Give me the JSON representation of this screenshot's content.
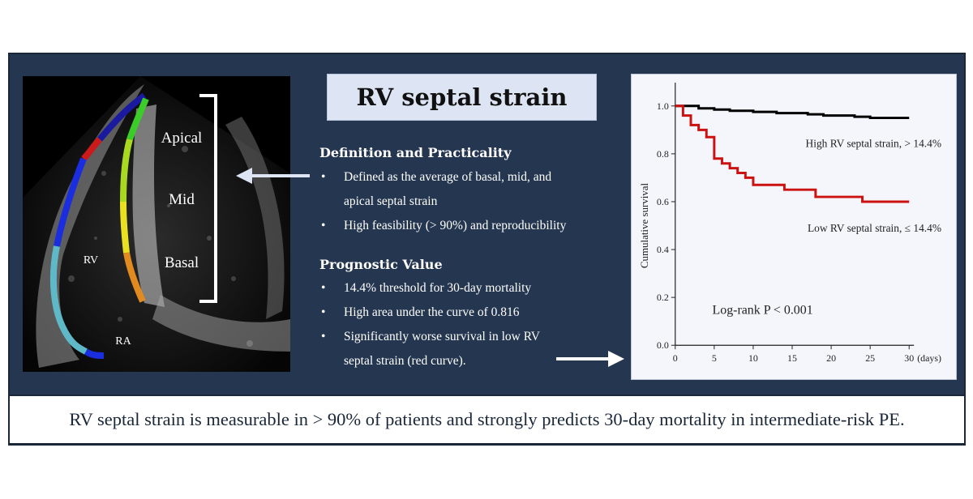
{
  "title": "RV septal strain",
  "echo": {
    "labels": {
      "apical": "Apical",
      "mid": "Mid",
      "basal": "Basal",
      "rv": "RV",
      "ra": "RA"
    }
  },
  "definition": {
    "heading": "Definition and Practicality",
    "items": [
      "Defined as the average of basal, mid, and",
      "apical septal strain",
      "High feasibility (> 90%) and reproducibility"
    ]
  },
  "prognostic": {
    "heading": "Prognostic Value",
    "items": [
      "14.4% threshold for 30-day mortality",
      "High area under the curve of 0.816",
      "Significantly worse survival in low RV",
      "septal strain (red curve)."
    ]
  },
  "chart_data": {
    "type": "line",
    "ylabel": "Cumulative survival",
    "xlabel": "(days)",
    "xlim": [
      0,
      30
    ],
    "ylim": [
      0,
      1.0
    ],
    "xticks": [
      0,
      5,
      10,
      15,
      20,
      25,
      30
    ],
    "yticks": [
      0.0,
      0.2,
      0.4,
      0.6,
      0.8,
      1.0
    ],
    "ytick_labels": [
      "0.0",
      "0.2",
      "0.4",
      "0.6",
      "0.8",
      "1.0"
    ],
    "annotation": "Log-rank P < 0.001",
    "series": [
      {
        "name": "High RV septal strain, > 14.4%",
        "color": "#000000",
        "step": [
          [
            0,
            1.0
          ],
          [
            3,
            0.99
          ],
          [
            5,
            0.985
          ],
          [
            7,
            0.98
          ],
          [
            10,
            0.975
          ],
          [
            13,
            0.97
          ],
          [
            17,
            0.965
          ],
          [
            19,
            0.96
          ],
          [
            23,
            0.955
          ],
          [
            25,
            0.95
          ],
          [
            30,
            0.95
          ]
        ]
      },
      {
        "name": "Low RV septal strain, ≤ 14.4%",
        "color": "#cc1111",
        "step": [
          [
            0,
            1.0
          ],
          [
            1,
            0.96
          ],
          [
            2,
            0.92
          ],
          [
            3,
            0.9
          ],
          [
            4,
            0.87
          ],
          [
            5,
            0.78
          ],
          [
            6,
            0.76
          ],
          [
            7,
            0.74
          ],
          [
            8,
            0.72
          ],
          [
            9,
            0.7
          ],
          [
            10,
            0.67
          ],
          [
            14,
            0.65
          ],
          [
            18,
            0.62
          ],
          [
            24,
            0.6
          ],
          [
            30,
            0.6
          ]
        ]
      }
    ]
  },
  "footer": "RV septal strain is measurable in > 90% of patients and strongly predicts 30-day mortality in intermediate-risk PE.",
  "colors": {
    "panel": "#253650",
    "title_box": "#dde4f3",
    "arrow": "#dde4f3"
  }
}
